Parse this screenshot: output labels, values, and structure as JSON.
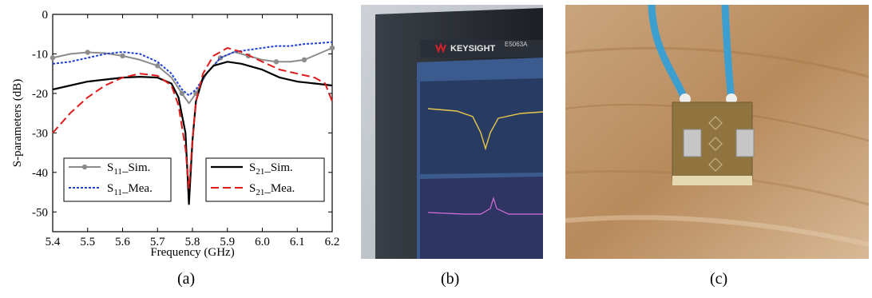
{
  "chart_data": {
    "type": "line",
    "xlabel": "Frequency (GHz)",
    "ylabel": "S-parameters (dB)",
    "xlim": [
      5.4,
      6.2
    ],
    "ylim": [
      -55,
      0
    ],
    "xticks": [
      "5.4",
      "5.5",
      "5.6",
      "5.7",
      "5.8",
      "5.9",
      "6.0",
      "6.1",
      "6.2"
    ],
    "yticks": [
      "0",
      "-10",
      "-20",
      "-30",
      "-40",
      "-50"
    ],
    "grid": false,
    "series": [
      {
        "name": "S11_Sim.",
        "label_main": "S",
        "label_sub": "11",
        "label_rest": "_Sim.",
        "color": "#8c8c8c",
        "style": "solid-marker",
        "x": [
          5.4,
          5.45,
          5.5,
          5.55,
          5.6,
          5.65,
          5.7,
          5.74,
          5.77,
          5.79,
          5.81,
          5.84,
          5.88,
          5.92,
          5.96,
          6.0,
          6.04,
          6.08,
          6.12,
          6.16,
          6.2
        ],
        "y": [
          -11,
          -10,
          -9.6,
          -9.8,
          -10.5,
          -11.5,
          -13,
          -16,
          -20,
          -22.5,
          -20,
          -15,
          -11,
          -9.5,
          -10.5,
          -11.5,
          -12,
          -12,
          -11.5,
          -10,
          -8.5
        ]
      },
      {
        "name": "S11_Mea.",
        "label_main": "S",
        "label_sub": "11",
        "label_rest": "_Mea.",
        "color": "#1f3fd6",
        "style": "dotted",
        "x": [
          5.4,
          5.45,
          5.5,
          5.55,
          5.6,
          5.65,
          5.7,
          5.74,
          5.77,
          5.79,
          5.81,
          5.84,
          5.88,
          5.92,
          5.96,
          6.0,
          6.04,
          6.08,
          6.12,
          6.16,
          6.2
        ],
        "y": [
          -12.5,
          -12,
          -11,
          -10,
          -9.5,
          -10,
          -12,
          -15,
          -19,
          -20.5,
          -19,
          -15,
          -11,
          -9.5,
          -9,
          -8.5,
          -8,
          -8,
          -7.5,
          -7.3,
          -7
        ]
      },
      {
        "name": "S21_Sim.",
        "label_main": "S",
        "label_sub": "21",
        "label_rest": "_Sim.",
        "color": "#000000",
        "style": "solid",
        "x": [
          5.4,
          5.45,
          5.5,
          5.55,
          5.6,
          5.65,
          5.7,
          5.74,
          5.76,
          5.78,
          5.79,
          5.8,
          5.81,
          5.83,
          5.86,
          5.9,
          5.94,
          6.0,
          6.05,
          6.1,
          6.15,
          6.2
        ],
        "y": [
          -19,
          -18,
          -17,
          -16.5,
          -16,
          -15.8,
          -16,
          -17.5,
          -21,
          -30,
          -48,
          -32,
          -22,
          -16,
          -13,
          -12,
          -12.5,
          -14,
          -16,
          -17,
          -17.5,
          -18
        ]
      },
      {
        "name": "S21_Mea.",
        "label_main": "S",
        "label_sub": "21",
        "label_rest": "_Mea.",
        "color": "#e01a1a",
        "style": "dashed",
        "x": [
          5.4,
          5.45,
          5.5,
          5.55,
          5.6,
          5.65,
          5.7,
          5.74,
          5.76,
          5.78,
          5.79,
          5.8,
          5.81,
          5.83,
          5.86,
          5.9,
          5.94,
          6.0,
          6.05,
          6.1,
          6.15,
          6.18,
          6.2
        ],
        "y": [
          -30,
          -25,
          -21,
          -18,
          -16,
          -15,
          -15.5,
          -18,
          -23,
          -34,
          -44,
          -32,
          -22,
          -15,
          -10.5,
          -8.5,
          -9.5,
          -12,
          -14,
          -15,
          -16,
          -17.5,
          -22
        ]
      }
    ]
  },
  "panels": {
    "a_label": "(a)",
    "b_label": "(b)",
    "c_label": "(c)"
  },
  "photo_b": {
    "brand": "KEYSIGHT",
    "model": "E5063A"
  }
}
